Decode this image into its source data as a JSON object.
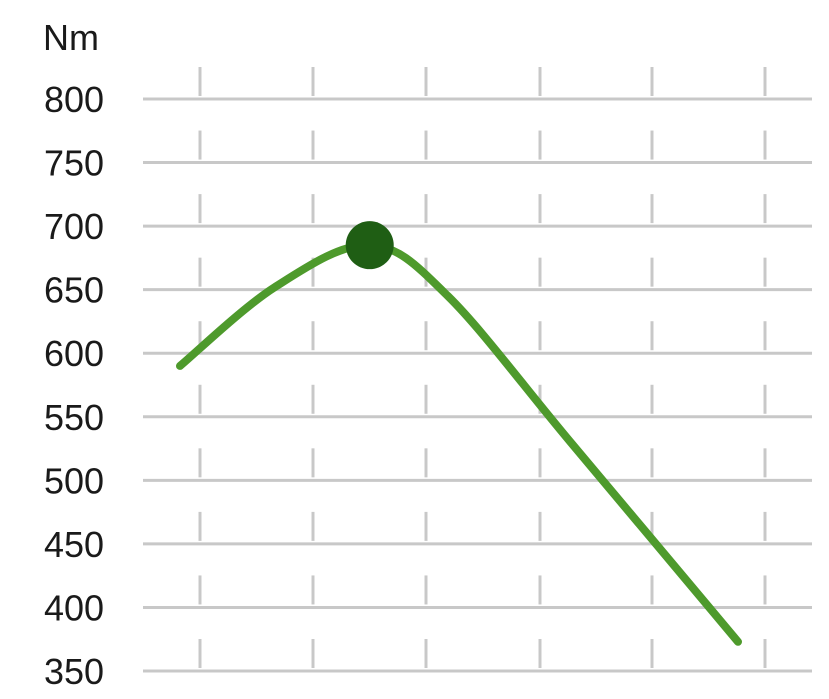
{
  "chart_data": {
    "type": "line",
    "ylabel": "Nm",
    "ylim": [
      350,
      800
    ],
    "yticks": [
      "800",
      "750",
      "700",
      "650",
      "600",
      "550",
      "500",
      "450",
      "400",
      "350"
    ],
    "grid": true,
    "colors": {
      "line": "#4e9a2c",
      "peak_marker": "#1f5e14",
      "grid": "#c8c8c8",
      "text": "#1a1a1a"
    },
    "series": [
      {
        "values": [
          {
            "x": 0.0,
            "y": 590
          },
          {
            "x": 0.17,
            "y": 652
          },
          {
            "x": 0.34,
            "y": 685
          },
          {
            "x": 0.48,
            "y": 645
          },
          {
            "x": 0.7,
            "y": 530
          },
          {
            "x": 1.0,
            "y": 373
          }
        ],
        "peak": {
          "x": 0.34,
          "y": 685
        }
      }
    ]
  }
}
